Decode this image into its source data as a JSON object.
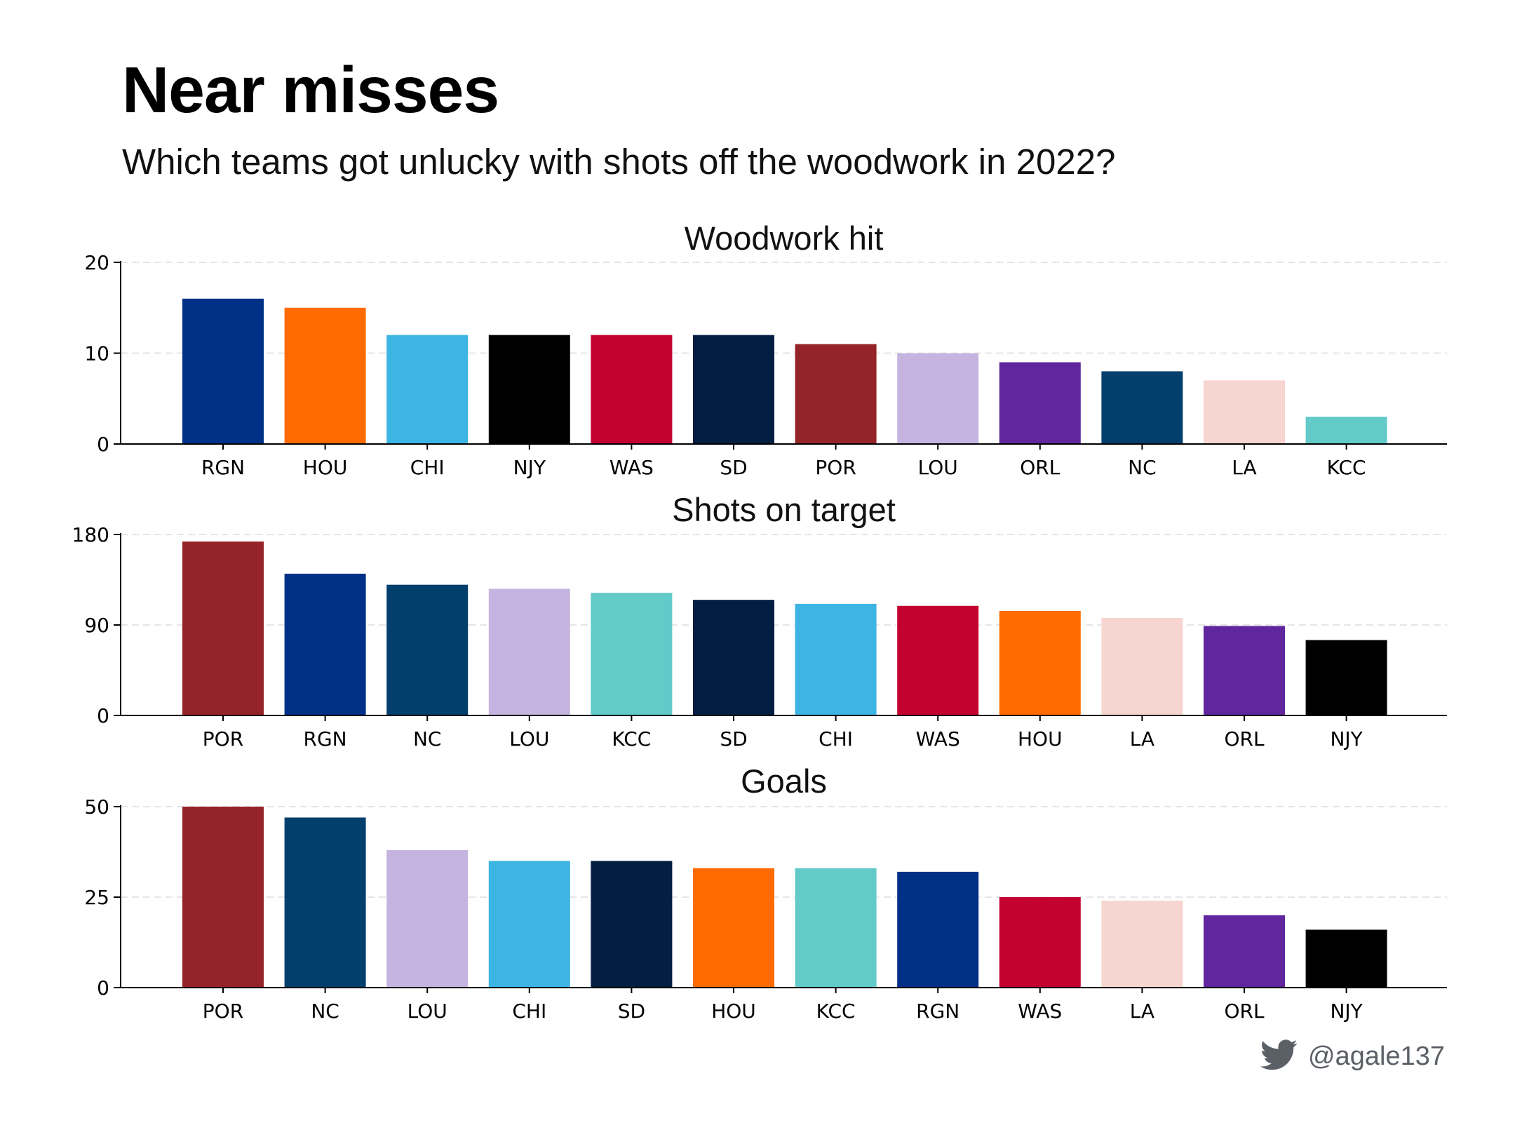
{
  "header": {
    "title": "Near misses",
    "subtitle": "Which teams got unlucky with shots off the woodwork in 2022?"
  },
  "credit": {
    "handle": "@agale137",
    "icon": "twitter-bird-icon"
  },
  "team_colors": {
    "RGN": "#013087",
    "HOU": "#FF6B00",
    "CHI": "#3CB4E4",
    "NJY": "#000000",
    "WAS": "#C40232",
    "SD": "#041E42",
    "POR": "#952428",
    "LOU": "#C6B4E0",
    "ORL": "#60269E",
    "NC": "#023F6C",
    "LA": "#F7D5D0",
    "KCC": "#62CAC9"
  },
  "chart_data": [
    {
      "type": "bar",
      "title": "Woodwork hit",
      "categories": [
        "RGN",
        "HOU",
        "CHI",
        "NJY",
        "WAS",
        "SD",
        "POR",
        "LOU",
        "ORL",
        "NC",
        "LA",
        "KCC"
      ],
      "values": [
        16,
        15,
        12,
        12,
        12,
        12,
        11,
        10,
        9,
        8,
        7,
        3
      ],
      "ylim": [
        0,
        20
      ],
      "yticks": [
        0,
        10,
        20
      ],
      "grid": true
    },
    {
      "type": "bar",
      "title": "Shots on target",
      "categories": [
        "POR",
        "RGN",
        "NC",
        "LOU",
        "KCC",
        "SD",
        "CHI",
        "WAS",
        "HOU",
        "LA",
        "ORL",
        "NJY"
      ],
      "values": [
        173,
        141,
        130,
        126,
        122,
        115,
        111,
        109,
        104,
        97,
        89,
        75
      ],
      "ylim": [
        0,
        180
      ],
      "yticks": [
        0,
        90,
        180
      ],
      "grid": true
    },
    {
      "type": "bar",
      "title": "Goals",
      "categories": [
        "POR",
        "NC",
        "LOU",
        "CHI",
        "SD",
        "HOU",
        "KCC",
        "RGN",
        "WAS",
        "LA",
        "ORL",
        "NJY"
      ],
      "values": [
        50,
        47,
        38,
        35,
        35,
        33,
        33,
        32,
        25,
        24,
        20,
        16
      ],
      "ylim": [
        0,
        50
      ],
      "yticks": [
        0,
        25,
        50
      ],
      "grid": true
    }
  ]
}
